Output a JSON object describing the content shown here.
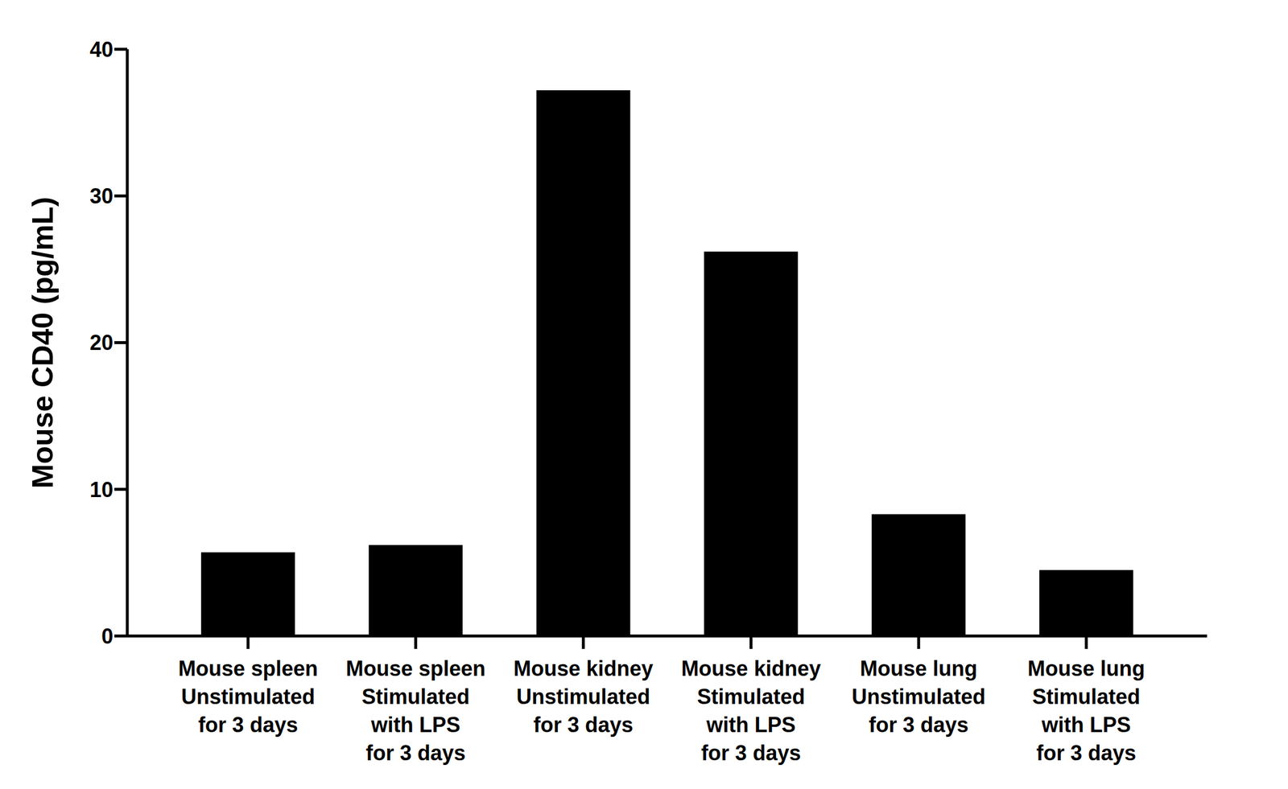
{
  "chart_data": {
    "type": "bar",
    "y_label": "Mouse CD40 (pg/mL)",
    "categories": [
      "Mouse spleen\nUnstimulated\nfor 3 days",
      "Mouse spleen\nStimulated\nwith LPS\nfor 3 days",
      "Mouse kidney\nUnstimulated\nfor 3 days",
      "Mouse kidney\nStimulated\nwith LPS\nfor 3 days",
      "Mouse lung\nUnstimulated\nfor 3 days",
      "Mouse lung\nStimulated\nwith LPS\nfor 3 days"
    ],
    "values": [
      5.7,
      6.2,
      37.2,
      26.2,
      8.3,
      4.5
    ],
    "color": "#000000",
    "ylim": [
      0,
      40
    ],
    "yticks": [
      0,
      10,
      20,
      30,
      40
    ],
    "grid": false
  }
}
